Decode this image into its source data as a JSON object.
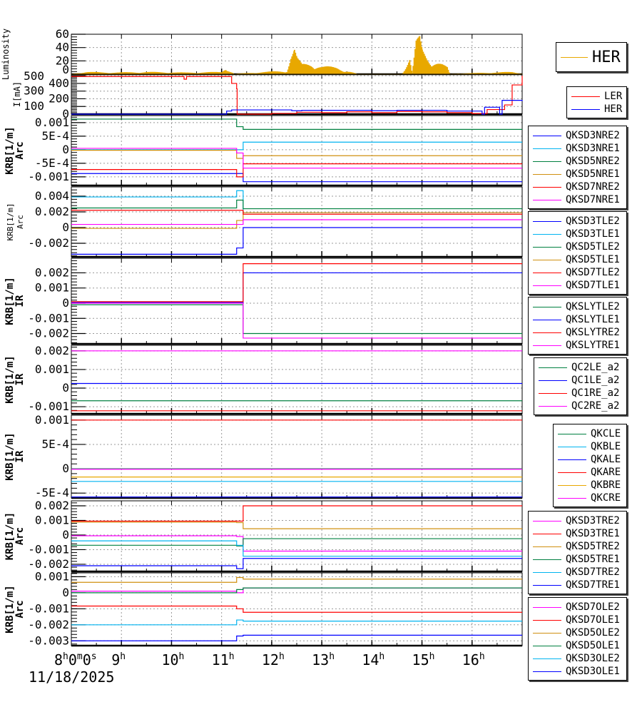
{
  "chart_data": {
    "type": "line",
    "x_axis": {
      "unit": "hour",
      "range": [
        8,
        17
      ],
      "tick_labels": [
        [
          "8",
          "h",
          "0",
          "m",
          "0",
          "s"
        ],
        [
          "9",
          "h"
        ],
        [
          "10",
          "h"
        ],
        [
          "11",
          "h"
        ],
        [
          "12",
          "h"
        ],
        [
          "13",
          "h"
        ],
        [
          "14",
          "h"
        ],
        [
          "15",
          "h"
        ],
        [
          "16",
          "h"
        ]
      ],
      "date_label": "11/18/2025"
    },
    "step_times": [
      8,
      11.3,
      11.43,
      17
    ],
    "panels": [
      {
        "ylabel": [
          "Luminosity"
        ],
        "ylim": [
          0,
          60
        ],
        "yticks": [
          0,
          20,
          40,
          60
        ],
        "ytick_labels": [
          "0",
          "20",
          "40",
          "60"
        ],
        "grid": true,
        "legend_kind": "big",
        "series": [
          {
            "name": "HER",
            "color": "#e8a800",
            "kind": "spikes",
            "points": [
              [
                8,
                0
              ],
              [
                8.3,
                3
              ],
              [
                8.8,
                2
              ],
              [
                9.5,
                3
              ],
              [
                10.3,
                2
              ],
              [
                11.0,
                3
              ],
              [
                11.08,
                12
              ],
              [
                11.15,
                5
              ],
              [
                11.25,
                0
              ],
              [
                12.3,
                5
              ],
              [
                12.38,
                30
              ],
              [
                12.45,
                40
              ],
              [
                12.5,
                25
              ],
              [
                12.6,
                15
              ],
              [
                12.8,
                18
              ],
              [
                13.0,
                12
              ],
              [
                13.3,
                10
              ],
              [
                13.5,
                5
              ],
              [
                13.7,
                0
              ],
              [
                14.6,
                0
              ],
              [
                14.65,
                8
              ],
              [
                14.75,
                25
              ],
              [
                14.8,
                0
              ],
              [
                14.88,
                50
              ],
              [
                14.95,
                58
              ],
              [
                15.0,
                40
              ],
              [
                15.1,
                30
              ],
              [
                15.2,
                25
              ],
              [
                15.3,
                20
              ],
              [
                15.4,
                15
              ],
              [
                15.5,
                10
              ],
              [
                15.55,
                0
              ],
              [
                16.8,
                3
              ],
              [
                17,
                0
              ]
            ]
          }
        ]
      },
      {
        "ylabel": [
          "I[mA]"
        ],
        "ylim": [
          0,
          520
        ],
        "yticks": [
          0,
          100,
          200,
          300,
          400,
          500
        ],
        "ytick_labels": [
          "0",
          "100",
          "200",
          "300",
          "400",
          "500"
        ],
        "grid": true,
        "series": [
          {
            "name": "LER",
            "color": "#ff0000",
            "kind": "line",
            "points": [
              [
                8,
                490
              ],
              [
                10.2,
                490
              ],
              [
                10.25,
                455
              ],
              [
                10.3,
                490
              ],
              [
                11.1,
                490
              ],
              [
                11.2,
                400
              ],
              [
                11.3,
                330
              ],
              [
                11.31,
                0
              ],
              [
                11.6,
                0
              ],
              [
                12.0,
                10
              ],
              [
                12.5,
                25
              ],
              [
                13,
                20
              ],
              [
                13.5,
                30
              ],
              [
                14,
                20
              ],
              [
                14.5,
                35
              ],
              [
                15,
                30
              ],
              [
                15.5,
                20
              ],
              [
                16,
                8
              ],
              [
                16.3,
                60
              ],
              [
                16.6,
                60
              ],
              [
                16.65,
                120
              ],
              [
                16.8,
                380
              ],
              [
                16.95,
                380
              ],
              [
                17,
                500
              ]
            ]
          },
          {
            "name": "HER",
            "color": "#0000ff",
            "kind": "line",
            "points": [
              [
                8,
                0
              ],
              [
                11.0,
                0
              ],
              [
                11.1,
                40
              ],
              [
                11.2,
                55
              ],
              [
                12.0,
                55
              ],
              [
                12.4,
                45
              ],
              [
                12.6,
                50
              ],
              [
                14,
                45
              ],
              [
                14.5,
                50
              ],
              [
                15.5,
                40
              ],
              [
                16.2,
                0
              ],
              [
                16.25,
                90
              ],
              [
                16.5,
                90
              ],
              [
                16.55,
                0
              ],
              [
                16.6,
                180
              ],
              [
                16.95,
                180
              ],
              [
                17,
                170
              ]
            ]
          }
        ]
      },
      {
        "ylabel": [
          "KRB[1/m]",
          "Arc"
        ],
        "ylim": [
          -0.00132,
          0.00126
        ],
        "yticks": [
          -0.001,
          -0.0005,
          0,
          0.0005,
          0.001
        ],
        "ytick_labels": [
          "-0.001",
          "-5E-4",
          "0",
          "5E-4",
          "0.001"
        ],
        "grid": true,
        "series": [
          {
            "name": "QKSD3NRE2",
            "color": "#0000ff",
            "values": [
              -0.00088,
              -0.00088,
              -0.00118
            ]
          },
          {
            "name": "QKSD3NRE1",
            "color": "#00b4f0",
            "values": [
              0,
              0,
              0.00028
            ]
          },
          {
            "name": "QKSD5NRE2",
            "color": "#008040",
            "values": [
              0.00113,
              0.00085,
              0.00075
            ]
          },
          {
            "name": "QKSD5NRE1",
            "color": "#d09010",
            "values": [
              -2e-05,
              -0.00032,
              -0.00022
            ]
          },
          {
            "name": "QKSD7NRE2",
            "color": "#ff0000",
            "values": [
              -0.00073,
              -0.001,
              -0.00052
            ]
          },
          {
            "name": "QKSD7NRE1",
            "color": "#ff00ff",
            "values": [
              5e-05,
              -0.00012,
              -0.00068
            ]
          }
        ]
      },
      {
        "ylabel": [
          "KRB[1/m]",
          "Arc"
        ],
        "ylim": [
          -0.00373,
          0.00518
        ],
        "yticks": [
          -0.002,
          0,
          0.002,
          0.004
        ],
        "ytick_labels": [
          "-0.002",
          "0",
          "0.002",
          "0.004"
        ],
        "grid": true,
        "small_label": true,
        "series": [
          {
            "name": "QKSD3TLE2",
            "color": "#0000ff",
            "values": [
              -0.0034,
              -0.0026,
              0
            ]
          },
          {
            "name": "QKSD3TLE1",
            "color": "#00b4f0",
            "values": [
              0.0039,
              0.0047,
              0.0019
            ]
          },
          {
            "name": "QKSD5TLE2",
            "color": "#008040",
            "values": [
              0.0025,
              0.0035,
              0.0024
            ]
          },
          {
            "name": "QKSD5TLE1",
            "color": "#d09010",
            "values": [
              -0.0001,
              0.0009,
              0.0019
            ]
          },
          {
            "name": "QKSD7TLE2",
            "color": "#ff0000",
            "values": [
              0.0022,
              0.0022,
              0.0017
            ]
          },
          {
            "name": "QKSD7TLE1",
            "color": "#ff00ff",
            "values": [
              0.0004,
              0.0004,
              0.001
            ]
          }
        ]
      },
      {
        "ylabel": [
          "KRB[1/m]",
          "IR"
        ],
        "ylim": [
          -0.00268,
          0.00296
        ],
        "yticks": [
          -0.002,
          -0.001,
          0,
          0.001,
          0.002
        ],
        "ytick_labels": [
          "-0.002",
          "-0.001",
          "0",
          "0.001",
          "0.002"
        ],
        "grid": true,
        "series": [
          {
            "name": "QKSLYTLE2",
            "color": "#008040",
            "values": [
              -0.0001,
              -0.0001,
              -0.002
            ]
          },
          {
            "name": "QKSLYTLE1",
            "color": "#0000ff",
            "values": [
              5e-05,
              5e-05,
              0.002
            ]
          },
          {
            "name": "QKSLYTRE2",
            "color": "#ff0000",
            "values": [
              0.0001,
              0.0001,
              0.0026
            ]
          },
          {
            "name": "QKSLYTRE1",
            "color": "#ff00ff",
            "values": [
              0,
              0,
              -0.0023
            ]
          }
        ]
      },
      {
        "ylabel": [
          "KRB[1/m]",
          "IR"
        ],
        "ylim": [
          -0.00138,
          0.0023
        ],
        "yticks": [
          -0.001,
          0,
          0.001,
          0.002
        ],
        "ytick_labels": [
          "-0.001",
          "0",
          "0.001",
          "0.002"
        ],
        "grid": true,
        "series": [
          {
            "name": "QC2LE_a2",
            "color": "#008040",
            "values": [
              -0.00068,
              -0.00068,
              -0.00068
            ]
          },
          {
            "name": "QC1LE_a2",
            "color": "#0000ff",
            "values": [
              0.00025,
              0.00025,
              0.00025
            ]
          },
          {
            "name": "QC1RE_a2",
            "color": "#ff0000",
            "values": [
              -0.00122,
              -0.00122,
              -0.00122
            ]
          },
          {
            "name": "QC2RE_a2",
            "color": "#ff00ff",
            "values": [
              0.002,
              0.002,
              0.002
            ]
          }
        ]
      },
      {
        "ylabel": [
          "KRB[1/m]",
          "IR"
        ],
        "ylim": [
          -0.0006,
          0.0011
        ],
        "yticks": [
          -0.0005,
          0,
          0.0005,
          0.001
        ],
        "ytick_labels": [
          "-5E-4",
          "0",
          "5E-4",
          "0.001"
        ],
        "grid": true,
        "series": [
          {
            "name": "QKCLE",
            "color": "#008040",
            "values": [
              0,
              0,
              0
            ]
          },
          {
            "name": "QKBLE",
            "color": "#00b4f0",
            "values": [
              -0.00026,
              -0.00026,
              -0.00026
            ]
          },
          {
            "name": "QKALE",
            "color": "#0000ff",
            "values": [
              -0.00058,
              -0.00058,
              -0.00058
            ]
          },
          {
            "name": "QKARE",
            "color": "#ff0000",
            "values": [
              0.001,
              0.001,
              0.001
            ]
          },
          {
            "name": "QKBRE",
            "color": "#e8a800",
            "values": [
              -0.00017,
              -0.00017,
              -0.00017
            ]
          },
          {
            "name": "QKCRE",
            "color": "#ff00ff",
            "values": [
              -1e-05,
              -1e-05,
              -1e-05
            ]
          }
        ]
      },
      {
        "ylabel": [
          "KRB[1/m]",
          "Arc"
        ],
        "ylim": [
          -0.00249,
          0.00234
        ],
        "yticks": [
          -0.002,
          -0.001,
          0,
          0.001,
          0.002
        ],
        "ytick_labels": [
          "-0.002",
          "-0.001",
          "0",
          "0.001",
          "0.002"
        ],
        "grid": true,
        "series": [
          {
            "name": "QKSD3TRE2",
            "color": "#ff00ff",
            "values": [
              -5e-05,
              -0.0001,
              -0.0011
            ]
          },
          {
            "name": "QKSD3TRE1",
            "color": "#ff0000",
            "values": [
              0.00095,
              0.00095,
              0.002
            ]
          },
          {
            "name": "QKSD5TRE2",
            "color": "#d09010",
            "values": [
              0.00088,
              0.00085,
              0.00043
            ]
          },
          {
            "name": "QKSD5TRE1",
            "color": "#008040",
            "values": [
              -0.0007,
              -0.00075,
              -0.00025
            ]
          },
          {
            "name": "QKSD7TRE2",
            "color": "#00b4f0",
            "values": [
              -0.0004,
              -0.0007,
              -0.00145
            ]
          },
          {
            "name": "QKSD7TRE1",
            "color": "#0000ff",
            "values": [
              -0.0021,
              -0.0023,
              -0.0016
            ]
          }
        ]
      },
      {
        "ylabel": [
          "KRB[1/m]",
          "Arc"
        ],
        "ylim": [
          -0.0033,
          0.00124
        ],
        "yticks": [
          -0.003,
          -0.002,
          -0.001,
          0,
          0.001
        ],
        "ytick_labels": [
          "-0.003",
          "-0.002",
          "-0.001",
          "0",
          "0.001"
        ],
        "grid": true,
        "series": [
          {
            "name": "QKSD7OLE2",
            "color": "#ff00ff",
            "values": [
              0.0001,
              0,
              0.0003
            ]
          },
          {
            "name": "QKSD7OLE1",
            "color": "#ff0000",
            "values": [
              -0.00083,
              -0.001,
              -0.00122
            ]
          },
          {
            "name": "QKSD5OLE2",
            "color": "#d09010",
            "values": [
              0.00065,
              0.00095,
              0.00085
            ]
          },
          {
            "name": "QKSD5OLE1",
            "color": "#008040",
            "values": [
              0,
              0.0002,
              0.0003
            ]
          },
          {
            "name": "QKSD3OLE2",
            "color": "#00b4f0",
            "values": [
              -0.002,
              -0.0017,
              -0.00177
            ]
          },
          {
            "name": "QKSD3OLE1",
            "color": "#0000ff",
            "values": [
              -0.003,
              -0.0027,
              -0.00265
            ]
          }
        ]
      }
    ]
  }
}
